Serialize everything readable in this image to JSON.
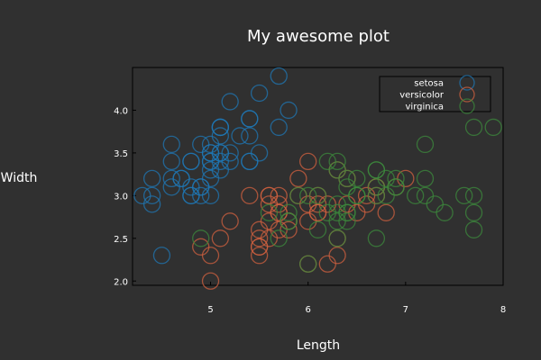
{
  "chart_data": {
    "type": "scatter",
    "title": "My awesome plot",
    "xlabel": "Length",
    "ylabel": "Width",
    "xlim": [
      4.2,
      8.0
    ],
    "ylim": [
      1.95,
      4.5
    ],
    "xticks": [
      5,
      6,
      7,
      8
    ],
    "xtick_labels": [
      "5",
      "6",
      "7",
      "8"
    ],
    "yticks": [
      2.0,
      2.5,
      3.0,
      3.5,
      4.0
    ],
    "ytick_labels": [
      "2.0",
      "2.5",
      "3.0",
      "3.5",
      "4.0"
    ],
    "grid": false,
    "legend_position": "top-right",
    "background": "#303030",
    "series": [
      {
        "name": "setosa",
        "color": "#1f77b4",
        "points": [
          [
            5.1,
            3.5
          ],
          [
            4.9,
            3.0
          ],
          [
            4.7,
            3.2
          ],
          [
            4.6,
            3.1
          ],
          [
            5.0,
            3.6
          ],
          [
            5.4,
            3.9
          ],
          [
            4.6,
            3.4
          ],
          [
            5.0,
            3.4
          ],
          [
            4.4,
            2.9
          ],
          [
            4.9,
            3.1
          ],
          [
            5.4,
            3.7
          ],
          [
            4.8,
            3.4
          ],
          [
            4.8,
            3.0
          ],
          [
            4.3,
            3.0
          ],
          [
            5.8,
            4.0
          ],
          [
            5.7,
            4.4
          ],
          [
            5.4,
            3.9
          ],
          [
            5.1,
            3.5
          ],
          [
            5.7,
            3.8
          ],
          [
            5.1,
            3.8
          ],
          [
            5.4,
            3.4
          ],
          [
            5.1,
            3.7
          ],
          [
            4.6,
            3.6
          ],
          [
            5.1,
            3.3
          ],
          [
            4.8,
            3.4
          ],
          [
            5.0,
            3.0
          ],
          [
            5.0,
            3.4
          ],
          [
            5.2,
            3.5
          ],
          [
            5.2,
            3.4
          ],
          [
            4.7,
            3.2
          ],
          [
            4.8,
            3.1
          ],
          [
            5.4,
            3.4
          ],
          [
            5.2,
            4.1
          ],
          [
            5.5,
            4.2
          ],
          [
            4.9,
            3.1
          ],
          [
            5.0,
            3.2
          ],
          [
            5.5,
            3.5
          ],
          [
            4.9,
            3.6
          ],
          [
            4.4,
            3.0
          ],
          [
            5.1,
            3.4
          ],
          [
            5.0,
            3.5
          ],
          [
            4.5,
            2.3
          ],
          [
            4.4,
            3.2
          ],
          [
            5.0,
            3.5
          ],
          [
            5.1,
            3.8
          ],
          [
            4.8,
            3.0
          ],
          [
            5.1,
            3.8
          ],
          [
            4.6,
            3.2
          ],
          [
            5.3,
            3.7
          ],
          [
            5.0,
            3.3
          ]
        ]
      },
      {
        "name": "versicolor",
        "color": "#d0603f",
        "points": [
          [
            7.0,
            3.2
          ],
          [
            6.4,
            3.2
          ],
          [
            6.9,
            3.1
          ],
          [
            5.5,
            2.3
          ],
          [
            6.5,
            2.8
          ],
          [
            5.7,
            2.8
          ],
          [
            6.3,
            3.3
          ],
          [
            4.9,
            2.4
          ],
          [
            6.6,
            2.9
          ],
          [
            5.2,
            2.7
          ],
          [
            5.0,
            2.0
          ],
          [
            5.9,
            3.0
          ],
          [
            6.0,
            2.2
          ],
          [
            6.1,
            2.9
          ],
          [
            5.6,
            2.9
          ],
          [
            6.7,
            3.1
          ],
          [
            5.6,
            3.0
          ],
          [
            5.8,
            2.7
          ],
          [
            6.2,
            2.2
          ],
          [
            5.6,
            2.5
          ],
          [
            5.9,
            3.2
          ],
          [
            6.1,
            2.8
          ],
          [
            6.3,
            2.5
          ],
          [
            6.1,
            2.8
          ],
          [
            6.4,
            2.9
          ],
          [
            6.6,
            3.0
          ],
          [
            6.8,
            2.8
          ],
          [
            6.7,
            3.0
          ],
          [
            6.0,
            2.9
          ],
          [
            5.7,
            2.6
          ],
          [
            5.5,
            2.4
          ],
          [
            5.5,
            2.4
          ],
          [
            5.8,
            2.7
          ],
          [
            6.0,
            2.7
          ],
          [
            5.4,
            3.0
          ],
          [
            6.0,
            3.4
          ],
          [
            6.7,
            3.1
          ],
          [
            6.3,
            2.3
          ],
          [
            5.6,
            3.0
          ],
          [
            5.5,
            2.5
          ],
          [
            5.5,
            2.6
          ],
          [
            6.1,
            3.0
          ],
          [
            5.8,
            2.6
          ],
          [
            5.0,
            2.3
          ],
          [
            5.6,
            2.7
          ],
          [
            5.7,
            3.0
          ],
          [
            5.7,
            2.9
          ],
          [
            6.2,
            2.9
          ],
          [
            5.1,
            2.5
          ],
          [
            5.7,
            2.8
          ]
        ]
      },
      {
        "name": "virginica",
        "color": "#3c8a3c",
        "points": [
          [
            6.3,
            3.3
          ],
          [
            5.8,
            2.7
          ],
          [
            7.1,
            3.0
          ],
          [
            6.3,
            2.9
          ],
          [
            6.5,
            3.0
          ],
          [
            7.6,
            3.0
          ],
          [
            4.9,
            2.5
          ],
          [
            7.3,
            2.9
          ],
          [
            6.7,
            2.5
          ],
          [
            7.2,
            3.6
          ],
          [
            6.5,
            3.2
          ],
          [
            6.4,
            2.7
          ],
          [
            6.8,
            3.0
          ],
          [
            5.7,
            2.5
          ],
          [
            5.8,
            2.8
          ],
          [
            6.4,
            3.2
          ],
          [
            6.5,
            3.0
          ],
          [
            7.7,
            3.8
          ],
          [
            7.7,
            2.6
          ],
          [
            6.0,
            2.2
          ],
          [
            6.9,
            3.2
          ],
          [
            5.6,
            2.8
          ],
          [
            7.7,
            2.8
          ],
          [
            6.3,
            2.7
          ],
          [
            6.7,
            3.3
          ],
          [
            7.2,
            3.2
          ],
          [
            6.2,
            2.8
          ],
          [
            6.1,
            3.0
          ],
          [
            6.4,
            2.8
          ],
          [
            7.2,
            3.0
          ],
          [
            7.4,
            2.8
          ],
          [
            7.9,
            3.8
          ],
          [
            6.4,
            2.8
          ],
          [
            6.3,
            2.8
          ],
          [
            6.1,
            2.6
          ],
          [
            7.7,
            3.0
          ],
          [
            6.3,
            3.4
          ],
          [
            6.4,
            3.1
          ],
          [
            6.0,
            3.0
          ],
          [
            6.9,
            3.1
          ],
          [
            6.7,
            3.1
          ],
          [
            6.9,
            3.1
          ],
          [
            5.8,
            2.7
          ],
          [
            6.8,
            3.2
          ],
          [
            6.7,
            3.3
          ],
          [
            6.7,
            3.0
          ],
          [
            6.3,
            2.5
          ],
          [
            6.5,
            3.0
          ],
          [
            6.2,
            3.4
          ],
          [
            5.9,
            3.0
          ]
        ]
      }
    ]
  }
}
